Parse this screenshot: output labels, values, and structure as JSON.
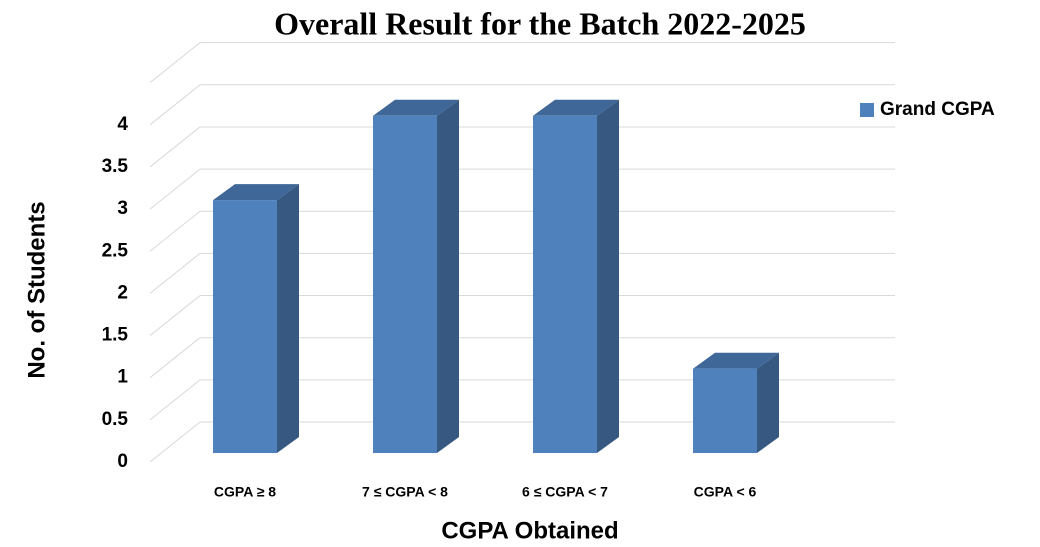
{
  "chart_data": {
    "type": "bar3d",
    "title": "Overall Result for the Batch 2022-2025",
    "x_label": "CGPA Obtained",
    "y_label": "No. of Students",
    "categories": [
      "CGPA ≥ 8",
      "7  ≤ CGPA < 8",
      "6 ≤ CGPA < 7",
      "CGPA < 6"
    ],
    "series": [
      {
        "name": "Grand CGPA",
        "color": "#4f81bd",
        "values": [
          3,
          4,
          4,
          1
        ]
      }
    ],
    "ylim": [
      0,
      4.5
    ],
    "yticks": [
      0,
      0.5,
      1,
      1.5,
      2,
      2.5,
      3,
      3.5,
      4
    ],
    "grid": true,
    "legend": "right"
  }
}
